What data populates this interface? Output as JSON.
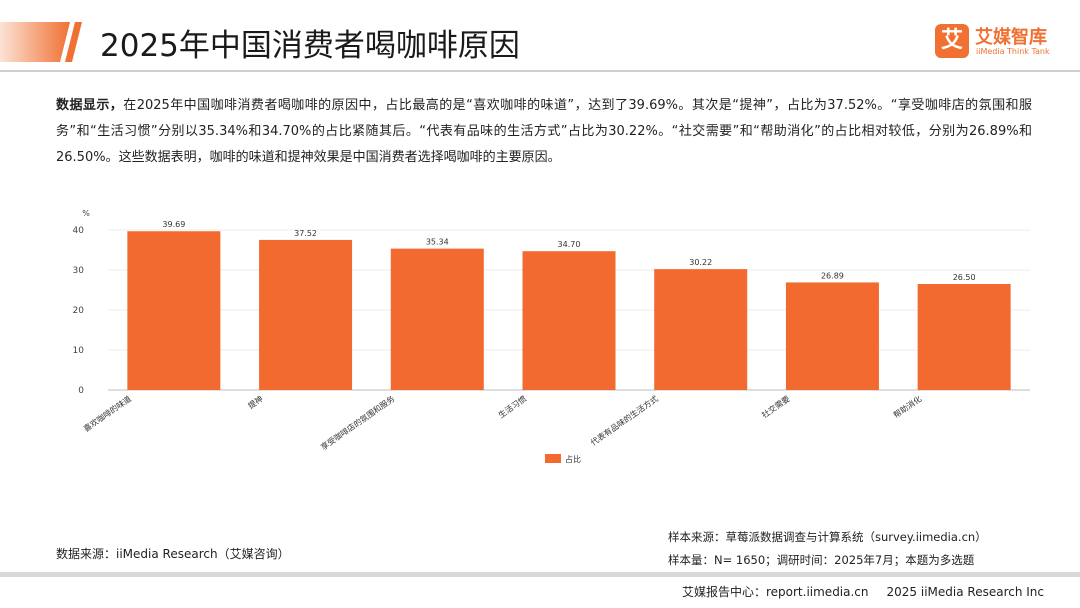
{
  "header": {
    "title": "2025年中国消费者喝咖啡原因",
    "logo_mark": "艾",
    "logo_cn": "艾媒智库",
    "logo_en": "iiMedia Think Tank",
    "accent_color": "#f07132"
  },
  "summary": {
    "lead": "数据显示，",
    "text": "在2025年中国咖啡消费者喝咖啡的原因中，占比最高的是“喜欢咖啡的味道”，达到了39.69%。其次是“提神”，占比为37.52%。“享受咖啡店的氛围和服务”和“生活习惯”分别以35.34%和34.70%的占比紧随其后。“代表有品味的生活方式”占比为30.22%。“社交需要”和“帮助消化”的占比相对较低，分别为26.89%和26.50%。这些数据表明，咖啡的味道和提神效果是中国消费者选择喝咖啡的主要原因。"
  },
  "chart_data": {
    "type": "bar",
    "title": "",
    "ylabel": "%",
    "xlabel": "",
    "ylim": [
      0,
      40
    ],
    "yticks": [
      0,
      10,
      20,
      30,
      40
    ],
    "categories": [
      "喜欢咖啡的味道",
      "提神",
      "享受咖啡店的氛围和服务",
      "生活习惯",
      "代表有品味的生活方式",
      "社交需要",
      "帮助消化"
    ],
    "series": [
      {
        "name": "占比",
        "color": "#f26a2f",
        "values": [
          39.69,
          37.52,
          35.34,
          34.7,
          30.22,
          26.89,
          26.5
        ]
      }
    ],
    "data_labels": [
      "39.69",
      "37.52",
      "35.34",
      "34.70",
      "30.22",
      "26.89",
      "26.50"
    ],
    "grid": true,
    "legend_position": "bottom-center"
  },
  "sources": {
    "data_source": "数据来源：iiMedia Research（艾媒咨询）",
    "sample_source": "样本来源：草莓派数据调查与计算系统（survey.iimedia.cn）",
    "sample_info": "样本量：N= 1650；调研时间：2025年7月；本题为多选题"
  },
  "footer": {
    "report_center": "艾媒报告中心：report.iimedia.cn",
    "copyright": "2025 iiMedia Research Inc"
  }
}
